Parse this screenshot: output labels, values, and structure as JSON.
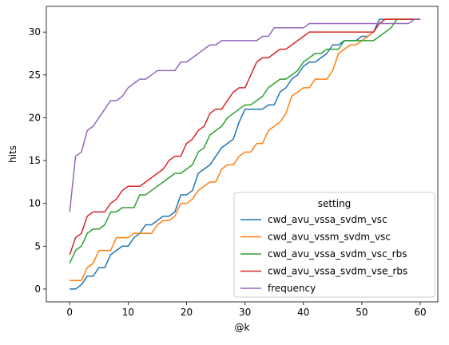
{
  "chart_data": {
    "type": "line",
    "title": "",
    "xlabel": "@k",
    "ylabel": "hits",
    "xlim": [
      -4,
      63
    ],
    "ylim": [
      -1.5,
      33
    ],
    "xticks": [
      0,
      10,
      20,
      30,
      40,
      50,
      60
    ],
    "yticks": [
      0,
      5,
      10,
      15,
      20,
      25,
      30
    ],
    "grid": false,
    "legend": {
      "title": "setting",
      "placement": "lower-right"
    },
    "series": [
      {
        "name": "cwd_avu_vssa_svdm_vsc",
        "color": "#1f77b4",
        "points": [
          [
            0,
            0
          ],
          [
            1,
            0
          ],
          [
            2,
            0.5
          ],
          [
            3,
            1.5
          ],
          [
            4,
            1.5
          ],
          [
            5,
            2.5
          ],
          [
            6,
            2.5
          ],
          [
            7,
            4
          ],
          [
            8,
            4.5
          ],
          [
            9,
            5
          ],
          [
            10,
            5
          ],
          [
            11,
            6
          ],
          [
            12,
            6.5
          ],
          [
            13,
            7.5
          ],
          [
            14,
            7.5
          ],
          [
            15,
            8
          ],
          [
            16,
            8.5
          ],
          [
            17,
            8.5
          ],
          [
            18,
            9
          ],
          [
            19,
            11
          ],
          [
            20,
            11
          ],
          [
            21,
            11.5
          ],
          [
            22,
            13.5
          ],
          [
            23,
            14
          ],
          [
            24,
            14.5
          ],
          [
            25,
            15.5
          ],
          [
            26,
            16.5
          ],
          [
            27,
            17
          ],
          [
            28,
            17.5
          ],
          [
            29,
            19.5
          ],
          [
            30,
            21
          ],
          [
            31,
            21
          ],
          [
            32,
            21
          ],
          [
            33,
            21
          ],
          [
            34,
            21.5
          ],
          [
            35,
            21.5
          ],
          [
            36,
            23
          ],
          [
            37,
            23.5
          ],
          [
            38,
            24.5
          ],
          [
            39,
            25
          ],
          [
            40,
            26
          ],
          [
            41,
            26.5
          ],
          [
            42,
            26.5
          ],
          [
            43,
            27
          ],
          [
            44,
            27.5
          ],
          [
            45,
            28.5
          ],
          [
            46,
            28.5
          ],
          [
            47,
            29
          ],
          [
            48,
            29
          ],
          [
            49,
            29
          ],
          [
            50,
            29.5
          ],
          [
            51,
            29.5
          ],
          [
            52,
            30
          ],
          [
            53,
            31.5
          ],
          [
            54,
            31.5
          ],
          [
            55,
            31.5
          ],
          [
            56,
            31.5
          ],
          [
            57,
            31.5
          ],
          [
            58,
            31.5
          ],
          [
            59,
            31.5
          ],
          [
            60,
            31.5
          ]
        ]
      },
      {
        "name": "cwd_avu_vssm_svdm_vsc",
        "color": "#ff7f0e",
        "points": [
          [
            0,
            1
          ],
          [
            1,
            1
          ],
          [
            2,
            1
          ],
          [
            3,
            2.5
          ],
          [
            4,
            3
          ],
          [
            5,
            4.5
          ],
          [
            6,
            4.5
          ],
          [
            7,
            4.5
          ],
          [
            8,
            6
          ],
          [
            9,
            6
          ],
          [
            10,
            6
          ],
          [
            11,
            6.5
          ],
          [
            12,
            6.5
          ],
          [
            13,
            6.5
          ],
          [
            14,
            6.5
          ],
          [
            15,
            7.5
          ],
          [
            16,
            8
          ],
          [
            17,
            8
          ],
          [
            18,
            8.5
          ],
          [
            19,
            10
          ],
          [
            20,
            10
          ],
          [
            21,
            10.5
          ],
          [
            22,
            11.5
          ],
          [
            23,
            12
          ],
          [
            24,
            12.5
          ],
          [
            25,
            12.5
          ],
          [
            26,
            14
          ],
          [
            27,
            14.5
          ],
          [
            28,
            14.5
          ],
          [
            29,
            15.5
          ],
          [
            30,
            16
          ],
          [
            31,
            16
          ],
          [
            32,
            17
          ],
          [
            33,
            17
          ],
          [
            34,
            18.5
          ],
          [
            35,
            19
          ],
          [
            36,
            19.5
          ],
          [
            37,
            20.5
          ],
          [
            38,
            22.5
          ],
          [
            39,
            23
          ],
          [
            40,
            23.5
          ],
          [
            41,
            23.5
          ],
          [
            42,
            24.5
          ],
          [
            43,
            24.5
          ],
          [
            44,
            24.5
          ],
          [
            45,
            25.5
          ],
          [
            46,
            27.5
          ],
          [
            47,
            28
          ],
          [
            48,
            28.5
          ],
          [
            49,
            28.5
          ],
          [
            50,
            29
          ],
          [
            51,
            29.5
          ],
          [
            52,
            30
          ],
          [
            53,
            31
          ],
          [
            54,
            31.5
          ],
          [
            55,
            31.5
          ],
          [
            56,
            31.5
          ],
          [
            57,
            31.5
          ],
          [
            58,
            31.5
          ],
          [
            59,
            31.5
          ],
          [
            60,
            31.5
          ]
        ]
      },
      {
        "name": "cwd_avu_vssa_svdm_vsc_rbs",
        "color": "#2ca02c",
        "points": [
          [
            0,
            3
          ],
          [
            1,
            4.5
          ],
          [
            2,
            5
          ],
          [
            3,
            6.5
          ],
          [
            4,
            7
          ],
          [
            5,
            7
          ],
          [
            6,
            7.5
          ],
          [
            7,
            9
          ],
          [
            8,
            9
          ],
          [
            9,
            9.5
          ],
          [
            10,
            9.5
          ],
          [
            11,
            9.5
          ],
          [
            12,
            11
          ],
          [
            13,
            11
          ],
          [
            14,
            11.5
          ],
          [
            15,
            12
          ],
          [
            16,
            12.5
          ],
          [
            17,
            13
          ],
          [
            18,
            13.5
          ],
          [
            19,
            13.5
          ],
          [
            20,
            14
          ],
          [
            21,
            14.5
          ],
          [
            22,
            16
          ],
          [
            23,
            16.5
          ],
          [
            24,
            18
          ],
          [
            25,
            18.5
          ],
          [
            26,
            19
          ],
          [
            27,
            20
          ],
          [
            28,
            20.5
          ],
          [
            29,
            21
          ],
          [
            30,
            21.5
          ],
          [
            31,
            21.5
          ],
          [
            32,
            22
          ],
          [
            33,
            22.5
          ],
          [
            34,
            23.5
          ],
          [
            35,
            24
          ],
          [
            36,
            24.5
          ],
          [
            37,
            24.5
          ],
          [
            38,
            25
          ],
          [
            39,
            25.5
          ],
          [
            40,
            26.5
          ],
          [
            41,
            27
          ],
          [
            42,
            27.5
          ],
          [
            43,
            27.5
          ],
          [
            44,
            28
          ],
          [
            45,
            28
          ],
          [
            46,
            28
          ],
          [
            47,
            29
          ],
          [
            48,
            29
          ],
          [
            49,
            29
          ],
          [
            50,
            29
          ],
          [
            51,
            29
          ],
          [
            52,
            29
          ],
          [
            53,
            29.5
          ],
          [
            54,
            30
          ],
          [
            55,
            30.5
          ],
          [
            56,
            31.5
          ],
          [
            57,
            31.5
          ],
          [
            58,
            31.5
          ],
          [
            59,
            31.5
          ],
          [
            60,
            31.5
          ]
        ]
      },
      {
        "name": "cwd_avu_vssa_svdm_vse_rbs",
        "color": "#d62728",
        "points": [
          [
            0,
            4
          ],
          [
            1,
            6
          ],
          [
            2,
            6.5
          ],
          [
            3,
            8.5
          ],
          [
            4,
            9
          ],
          [
            5,
            9
          ],
          [
            6,
            9
          ],
          [
            7,
            10
          ],
          [
            8,
            10.5
          ],
          [
            9,
            11.5
          ],
          [
            10,
            12
          ],
          [
            11,
            12
          ],
          [
            12,
            12
          ],
          [
            13,
            12.5
          ],
          [
            14,
            13
          ],
          [
            15,
            13.5
          ],
          [
            16,
            14
          ],
          [
            17,
            15
          ],
          [
            18,
            15.5
          ],
          [
            19,
            15.5
          ],
          [
            20,
            17
          ],
          [
            21,
            17.5
          ],
          [
            22,
            18.5
          ],
          [
            23,
            19
          ],
          [
            24,
            20.5
          ],
          [
            25,
            21
          ],
          [
            26,
            21
          ],
          [
            27,
            22
          ],
          [
            28,
            23
          ],
          [
            29,
            23.5
          ],
          [
            30,
            23.5
          ],
          [
            31,
            25
          ],
          [
            32,
            26.5
          ],
          [
            33,
            27
          ],
          [
            34,
            27
          ],
          [
            35,
            27.5
          ],
          [
            36,
            28
          ],
          [
            37,
            28
          ],
          [
            38,
            28.5
          ],
          [
            39,
            29
          ],
          [
            40,
            29.5
          ],
          [
            41,
            30
          ],
          [
            42,
            30
          ],
          [
            43,
            30
          ],
          [
            44,
            30
          ],
          [
            45,
            30
          ],
          [
            46,
            30
          ],
          [
            47,
            30
          ],
          [
            48,
            30
          ],
          [
            49,
            30
          ],
          [
            50,
            30
          ],
          [
            51,
            30
          ],
          [
            52,
            30
          ],
          [
            53,
            31
          ],
          [
            54,
            31.5
          ],
          [
            55,
            31.5
          ],
          [
            56,
            31.5
          ],
          [
            57,
            31.5
          ],
          [
            58,
            31.5
          ],
          [
            59,
            31.5
          ],
          [
            60,
            31.5
          ]
        ]
      },
      {
        "name": "frequency",
        "color": "#9467bd",
        "points": [
          [
            0,
            9
          ],
          [
            1,
            15.5
          ],
          [
            2,
            16
          ],
          [
            3,
            18.5
          ],
          [
            4,
            19
          ],
          [
            5,
            20
          ],
          [
            6,
            21
          ],
          [
            7,
            22
          ],
          [
            8,
            22
          ],
          [
            9,
            22.5
          ],
          [
            10,
            23.5
          ],
          [
            11,
            24
          ],
          [
            12,
            24.5
          ],
          [
            13,
            24.5
          ],
          [
            14,
            25
          ],
          [
            15,
            25.5
          ],
          [
            16,
            25.5
          ],
          [
            17,
            25.5
          ],
          [
            18,
            25.5
          ],
          [
            19,
            26.5
          ],
          [
            20,
            26.5
          ],
          [
            21,
            27
          ],
          [
            22,
            27.5
          ],
          [
            23,
            28
          ],
          [
            24,
            28.5
          ],
          [
            25,
            28.5
          ],
          [
            26,
            29
          ],
          [
            27,
            29
          ],
          [
            28,
            29
          ],
          [
            29,
            29
          ],
          [
            30,
            29
          ],
          [
            31,
            29
          ],
          [
            32,
            29
          ],
          [
            33,
            29.5
          ],
          [
            34,
            29.5
          ],
          [
            35,
            30.5
          ],
          [
            36,
            30.5
          ],
          [
            37,
            30.5
          ],
          [
            38,
            30.5
          ],
          [
            39,
            30.5
          ],
          [
            40,
            30.5
          ],
          [
            41,
            31
          ],
          [
            42,
            31
          ],
          [
            43,
            31
          ],
          [
            44,
            31
          ],
          [
            45,
            31
          ],
          [
            46,
            31
          ],
          [
            47,
            31
          ],
          [
            48,
            31
          ],
          [
            49,
            31
          ],
          [
            50,
            31
          ],
          [
            51,
            31
          ],
          [
            52,
            31
          ],
          [
            53,
            31
          ],
          [
            54,
            31
          ],
          [
            55,
            31
          ],
          [
            56,
            31
          ],
          [
            57,
            31
          ],
          [
            58,
            31
          ],
          [
            59,
            31.5
          ],
          [
            60,
            31.5
          ]
        ]
      }
    ]
  }
}
